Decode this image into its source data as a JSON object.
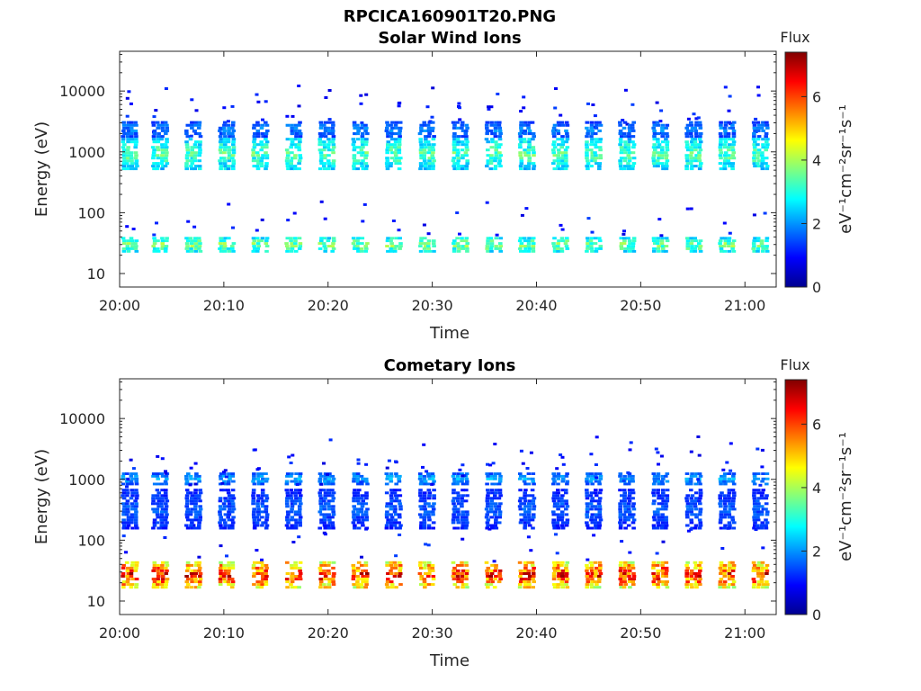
{
  "figure_title": "RPCICA160901T20.PNG",
  "colorbar_title": "Flux",
  "colorbar_label": "eV⁻¹cm⁻²sr⁻¹s⁻¹",
  "chart_data": [
    {
      "type": "heatmap",
      "title": "Solar Wind Ions",
      "xlabel": "Time",
      "ylabel": "Energy (eV)",
      "x_ticks": [
        "20:00",
        "20:10",
        "20:20",
        "20:30",
        "20:40",
        "20:50",
        "21:00"
      ],
      "y_ticks": [
        "10",
        "100",
        "1000",
        "10000"
      ],
      "y_scale": "log",
      "ylim": [
        6,
        45000
      ],
      "xlim_minutes": [
        0,
        63
      ],
      "colorbar": {
        "range": [
          0,
          7.4
        ],
        "ticks": [
          "0",
          "2",
          "4",
          "6"
        ]
      },
      "sweep_times_min": [
        0.2,
        3.1,
        6.3,
        9.5,
        12.7,
        15.9,
        19.1,
        22.3,
        25.5,
        28.7,
        31.9,
        35.1,
        38.3,
        41.5,
        44.7,
        47.9,
        51.1,
        54.3,
        57.5,
        60.7
      ],
      "bands": [
        {
          "energy_low": 22,
          "energy_high": 40,
          "flux": 3.5
        },
        {
          "energy_low": 500,
          "energy_high": 1700,
          "flux": 3.2
        },
        {
          "energy_low": 1700,
          "energy_high": 3200,
          "flux": 1.8
        }
      ]
    },
    {
      "type": "heatmap",
      "title": "Cometary Ions",
      "xlabel": "Time",
      "ylabel": "Energy (eV)",
      "x_ticks": [
        "20:00",
        "20:10",
        "20:20",
        "20:30",
        "20:40",
        "20:50",
        "21:00"
      ],
      "y_ticks": [
        "10",
        "100",
        "1000",
        "10000"
      ],
      "y_scale": "log",
      "ylim": [
        6,
        45000
      ],
      "xlim_minutes": [
        0,
        63
      ],
      "colorbar": {
        "range": [
          0,
          7.4
        ],
        "ticks": [
          "0",
          "2",
          "4",
          "6"
        ]
      },
      "sweep_times_min": [
        0.2,
        3.1,
        6.3,
        9.5,
        12.7,
        15.9,
        19.1,
        22.3,
        25.5,
        28.7,
        31.9,
        35.1,
        38.3,
        41.5,
        44.7,
        47.9,
        51.1,
        54.3,
        57.5,
        60.7
      ],
      "bands": [
        {
          "energy_low": 16,
          "energy_high": 45,
          "flux": 6.0
        },
        {
          "energy_low": 800,
          "energy_high": 1300,
          "flux": 2.0
        },
        {
          "energy_low": 150,
          "energy_high": 700,
          "flux": 1.5
        }
      ]
    }
  ]
}
